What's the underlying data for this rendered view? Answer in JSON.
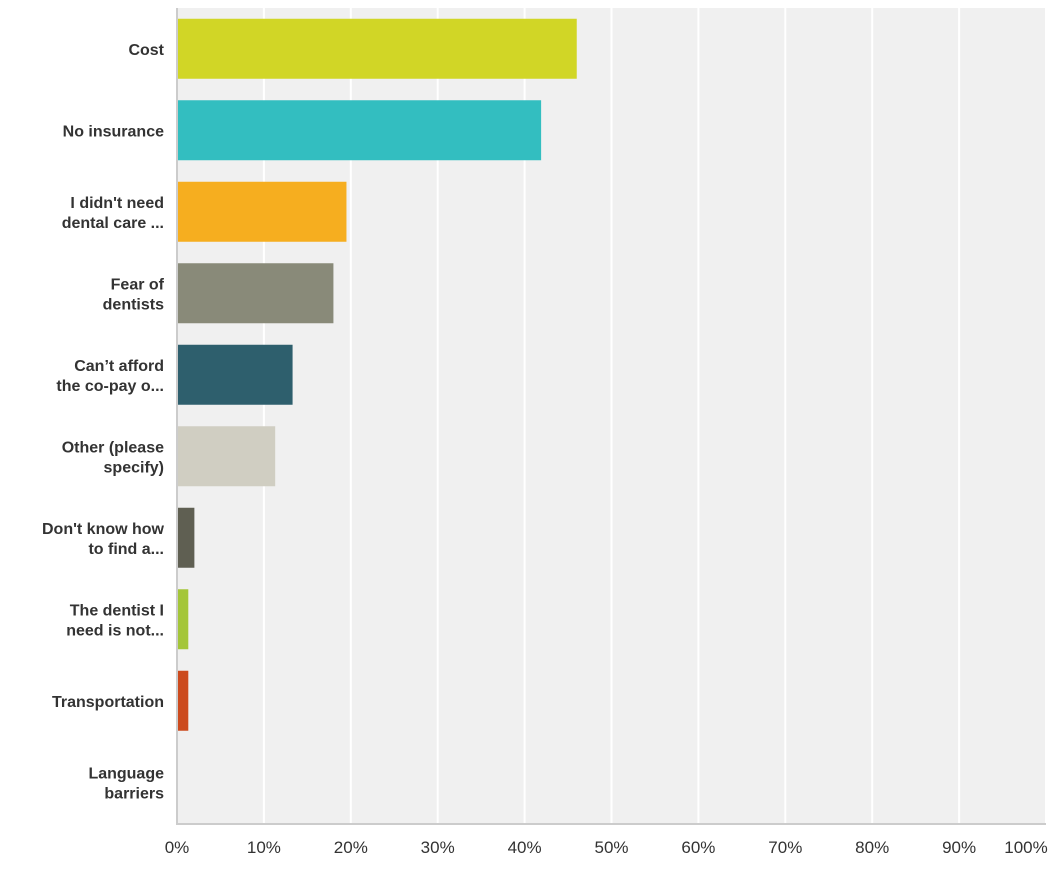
{
  "chart_data": {
    "type": "bar",
    "orientation": "horizontal",
    "categories": [
      [
        "Cost"
      ],
      [
        "No insurance"
      ],
      [
        "I didn't need",
        "dental care ..."
      ],
      [
        "Fear of",
        "dentists"
      ],
      [
        "Can’t afford",
        "the co-pay o..."
      ],
      [
        "Other (please",
        "specify)"
      ],
      [
        "Don't know how",
        "to find a..."
      ],
      [
        "The dentist I",
        "need is not..."
      ],
      [
        "Transportation"
      ],
      [
        "Language",
        "barriers"
      ]
    ],
    "values": [
      46.0,
      41.9,
      19.5,
      18.0,
      13.3,
      11.3,
      2.0,
      1.3,
      1.3,
      0
    ],
    "colors": [
      "#d1d626",
      "#33bec0",
      "#f6ae1f",
      "#898a79",
      "#2e5f6d",
      "#d0cec2",
      "#5f5f52",
      "#a4c639",
      "#cc4a1d",
      "#7c8a94"
    ],
    "xticks": [
      "0%",
      "10%",
      "20%",
      "30%",
      "40%",
      "50%",
      "60%",
      "70%",
      "80%",
      "90%",
      "100%"
    ],
    "xlim": [
      0,
      100
    ],
    "grid": true,
    "plot_background": "#f0f0f0",
    "gridline_color": "#ffffff"
  }
}
